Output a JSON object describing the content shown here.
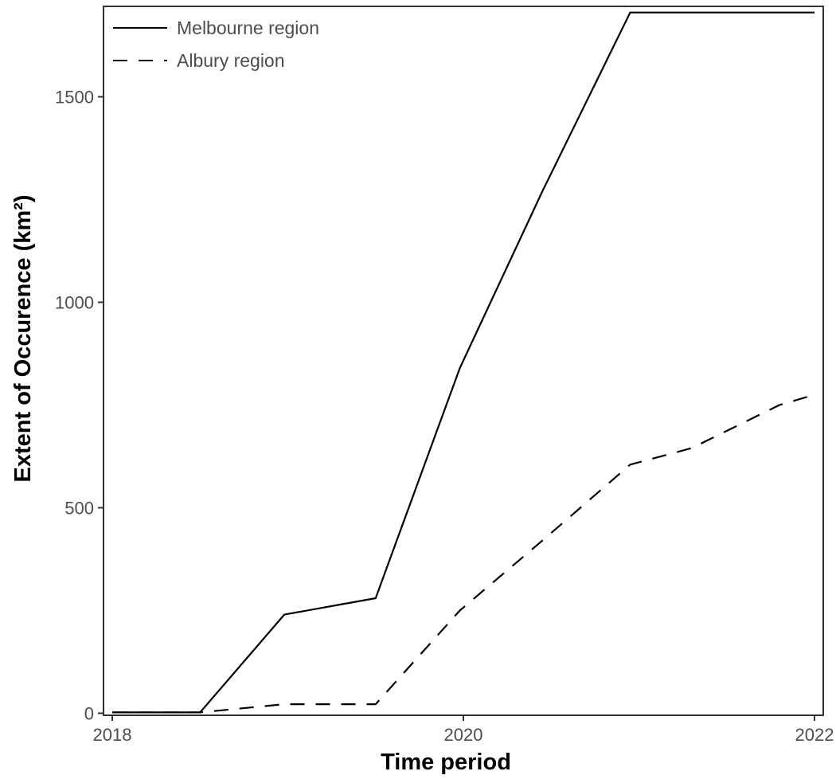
{
  "chart_data": {
    "type": "line",
    "title": "",
    "xlabel": "Time period",
    "ylabel": "Extent of Occurence (km²)",
    "xlim": [
      2017.95,
      2022.05
    ],
    "ylim": [
      -5,
      1720
    ],
    "x_ticks": [
      2018,
      2020,
      2022
    ],
    "x_tick_labels": [
      "2018",
      "2020",
      "2022"
    ],
    "y_ticks": [
      0,
      500,
      1000,
      1500
    ],
    "y_tick_labels": [
      "0",
      "500",
      "1000",
      "1500"
    ],
    "grid": false,
    "legend_position": "top-left",
    "series": [
      {
        "name": "Melbourne region",
        "line_style": "solid",
        "color": "#000000",
        "points": [
          [
            2018.0,
            2
          ],
          [
            2018.5,
            2
          ],
          [
            2018.98,
            240
          ],
          [
            2019.5,
            280
          ],
          [
            2019.98,
            840
          ],
          [
            2020.45,
            1270
          ],
          [
            2020.95,
            1705
          ],
          [
            2022.0,
            1705
          ]
        ]
      },
      {
        "name": "Albury region",
        "line_style": "dashed",
        "color": "#000000",
        "points": [
          [
            2018.0,
            2
          ],
          [
            2018.5,
            2
          ],
          [
            2018.98,
            22
          ],
          [
            2019.5,
            22
          ],
          [
            2019.98,
            250
          ],
          [
            2020.45,
            420
          ],
          [
            2020.95,
            605
          ],
          [
            2021.3,
            645
          ],
          [
            2021.8,
            750
          ],
          [
            2022.0,
            775
          ]
        ]
      }
    ]
  }
}
